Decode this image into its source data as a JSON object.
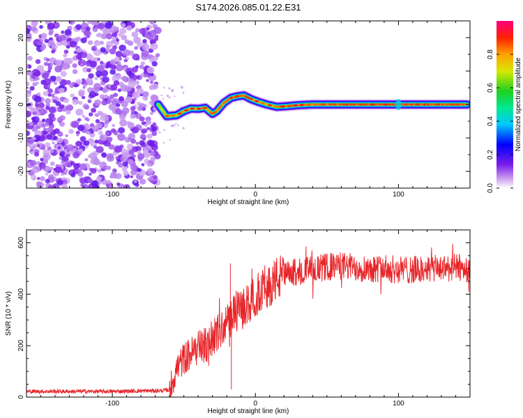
{
  "chart_data": [
    {
      "type": "heatmap",
      "title": "S174.2026.085.01.22.E31",
      "xlabel": "Height of straight line (km)",
      "ylabel": "Frequency (Hz)",
      "xlim": [
        -160,
        150
      ],
      "ylim": [
        -25,
        25
      ],
      "x_ticks": [
        -100,
        0,
        100
      ],
      "y_ticks": [
        -20,
        -10,
        0,
        10,
        20
      ],
      "noise_region_x": [
        -160,
        -68
      ],
      "ridge": {
        "x": [
          -68,
          -62,
          -55,
          -50,
          -45,
          -40,
          -35,
          -30,
          -27,
          -22,
          -17,
          -12,
          -8,
          -3,
          2,
          8,
          15,
          22,
          30,
          40,
          50,
          60,
          80,
          100,
          120,
          148
        ],
        "y": [
          0,
          -3.5,
          -3.2,
          -2,
          -1.2,
          -1.3,
          -1.0,
          -2.8,
          -2.0,
          0.5,
          2.0,
          2.5,
          2.7,
          1.6,
          0.8,
          0.0,
          -0.7,
          -0.5,
          -0.2,
          0.0,
          0.0,
          0.0,
          0.0,
          0.0,
          0.0,
          0.0
        ],
        "amplitude": [
          0.3,
          0.75,
          0.7,
          0.75,
          0.75,
          0.8,
          0.8,
          0.85,
          0.8,
          0.8,
          0.85,
          0.9,
          0.92,
          0.85,
          0.75,
          0.7,
          0.8,
          0.85,
          0.85,
          0.88,
          0.92,
          0.95,
          0.95,
          0.95,
          0.95,
          0.95
        ]
      },
      "colorbar": {
        "label": "Normalized spectral amplitude",
        "range": [
          0,
          1
        ],
        "ticks": [
          "0.0",
          "0.2",
          "0.4",
          "0.6",
          "0.8"
        ],
        "tick_values": [
          0.0,
          0.2,
          0.4,
          0.6,
          0.8
        ]
      }
    },
    {
      "type": "line",
      "xlabel": "Height of straight line (km)",
      "ylabel": "SNR (10 * v/v)",
      "xlim": [
        -160,
        150
      ],
      "ylim": [
        0,
        650
      ],
      "x_ticks": [
        -100,
        0,
        100
      ],
      "y_ticks": [
        0,
        200,
        400,
        600
      ],
      "color": "#e8262a",
      "series": [
        {
          "name": "SNR",
          "x": [
            -160,
            -140,
            -120,
            -100,
            -80,
            -65,
            -60,
            -55,
            -50,
            -45,
            -40,
            -35,
            -30,
            -25,
            -20,
            -15,
            -10,
            -5,
            0,
            5,
            10,
            15,
            20,
            25,
            30,
            40,
            50,
            60,
            70,
            80,
            90,
            100,
            110,
            120,
            130,
            140,
            150
          ],
          "values": [
            22,
            22,
            22,
            22,
            24,
            25,
            28,
            110,
            150,
            170,
            190,
            200,
            230,
            260,
            290,
            320,
            340,
            360,
            390,
            420,
            440,
            460,
            470,
            480,
            490,
            495,
            505,
            510,
            505,
            500,
            500,
            495,
            495,
            495,
            500,
            505,
            500
          ]
        }
      ]
    }
  ]
}
